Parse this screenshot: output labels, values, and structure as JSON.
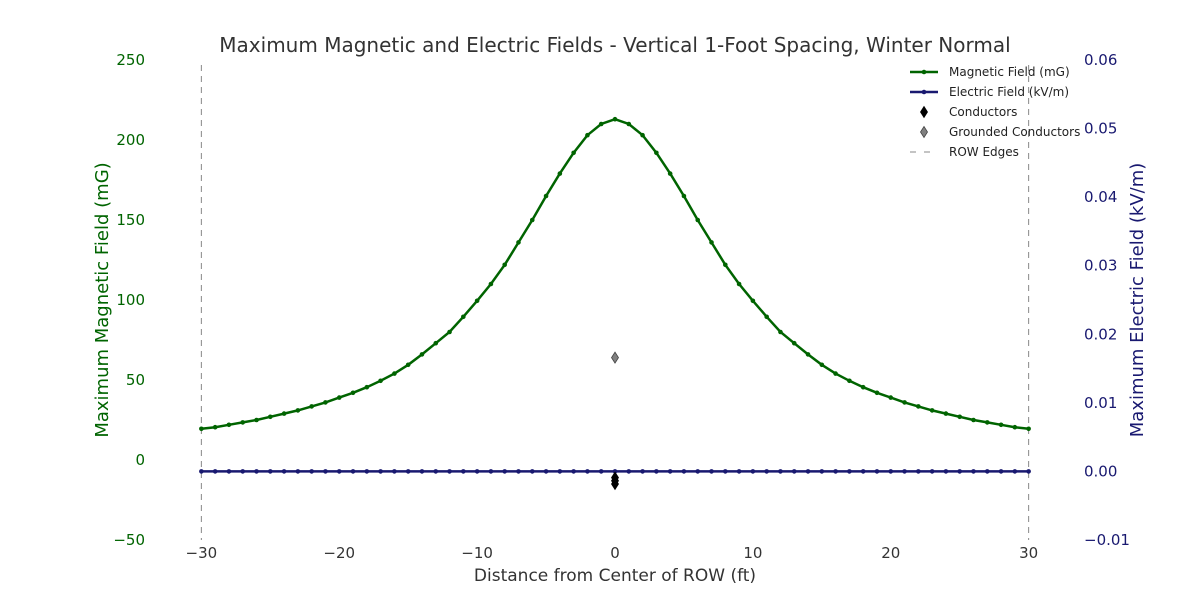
{
  "chart_data": {
    "type": "line",
    "title": "Maximum Magnetic and Electric Fields - Vertical 1-Foot Spacing, Winter Normal",
    "xlabel": "Distance from Center of ROW (ft)",
    "ylabel_left": "Maximum Magnetic Field (mG)",
    "ylabel_right": "Maximum Electric Field (kV/m)",
    "xlim": [
      -33,
      33
    ],
    "ylim_left": [
      -50,
      250
    ],
    "ylim_right": [
      -0.01,
      0.06
    ],
    "x_ticks": [
      "−30",
      "−20",
      "−10",
      "0",
      "10",
      "20",
      "30"
    ],
    "x_tick_values": [
      -30,
      -20,
      -10,
      0,
      10,
      20,
      30
    ],
    "y_left_ticks": [
      "−50",
      "0",
      "50",
      "100",
      "150",
      "200",
      "250"
    ],
    "y_left_tick_values": [
      -50,
      0,
      50,
      100,
      150,
      200,
      250
    ],
    "y_right_ticks": [
      "−0.01",
      "0.00",
      "0.01",
      "0.02",
      "0.03",
      "0.04",
      "0.05",
      "0.06"
    ],
    "y_right_tick_values": [
      -0.01,
      0,
      0.01,
      0.02,
      0.03,
      0.04,
      0.05,
      0.06
    ],
    "grid": false,
    "legend_position": "top-right",
    "colors": {
      "magnetic": "#006400",
      "electric": "#191970",
      "conductors": "#000000",
      "grounded": "#808080",
      "row_edges": "#888888"
    },
    "x": [
      -30,
      -29,
      -28,
      -27,
      -26,
      -25,
      -24,
      -23,
      -22,
      -21,
      -20,
      -19,
      -18,
      -17,
      -16,
      -15,
      -14,
      -13,
      -12,
      -11,
      -10,
      -9,
      -8,
      -7,
      -6,
      -5,
      -4,
      -3,
      -2,
      -1,
      0,
      1,
      2,
      3,
      4,
      5,
      6,
      7,
      8,
      9,
      10,
      11,
      12,
      13,
      14,
      15,
      16,
      17,
      18,
      19,
      20,
      21,
      22,
      23,
      24,
      25,
      26,
      27,
      28,
      29,
      30
    ],
    "series": [
      {
        "name": "Magnetic Field (mG)",
        "axis": "left",
        "values": [
          19.5,
          20.5,
          22,
          23.5,
          25,
          27,
          29,
          31,
          33.5,
          36,
          39,
          42,
          45.5,
          49.5,
          54,
          59.5,
          66,
          73,
          80,
          89.5,
          99.5,
          110,
          122,
          136,
          150,
          165,
          179,
          192,
          203,
          210,
          213,
          210,
          203,
          192,
          179,
          165,
          150,
          136,
          122,
          110,
          99.5,
          89.5,
          80,
          73,
          66,
          59.5,
          54,
          49.5,
          45.5,
          42,
          39,
          36,
          33.5,
          31,
          29,
          27,
          25,
          23.5,
          22,
          20.5,
          19.5
        ]
      },
      {
        "name": "Electric Field (kV/m)",
        "axis": "right",
        "values": [
          0,
          0,
          0,
          0,
          0,
          0,
          0,
          0,
          0,
          0,
          0,
          0,
          0,
          0,
          0,
          0,
          0,
          0,
          0,
          0,
          0,
          0,
          0,
          0,
          0,
          0,
          0,
          0,
          0,
          0,
          0,
          0,
          0,
          0,
          0,
          0,
          0,
          0,
          0,
          0,
          0,
          0,
          0,
          0,
          0,
          0,
          0,
          0,
          0,
          0,
          0,
          0,
          0,
          0,
          0,
          0,
          0,
          0,
          0,
          0,
          0
        ]
      }
    ],
    "conductors": {
      "name": "Conductors",
      "x": [
        0,
        0,
        0
      ],
      "y": [
        -11,
        -13,
        -15
      ]
    },
    "grounded_conductors": {
      "name": "Grounded Conductors",
      "x": [
        0
      ],
      "y": [
        64
      ]
    },
    "row_edges": {
      "name": "ROW Edges",
      "x": [
        -30,
        30
      ]
    }
  }
}
